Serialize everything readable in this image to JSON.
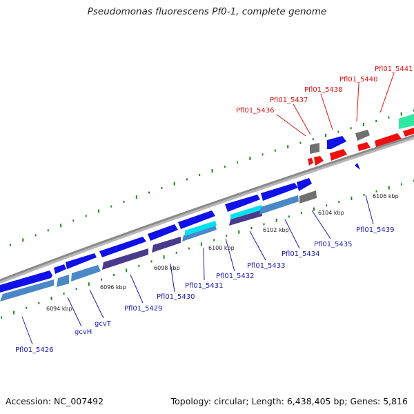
{
  "title": "Pseudomonas fluorescens Pf0-1, complete genome",
  "footer": {
    "accession": "Accession: NC_007492",
    "summary": "Topology: circular; Length: 6,438,405 bp; Genes: 5,816"
  },
  "colors": {
    "forward_gene": "#1010e8",
    "reverse_gene": "#4a88c8",
    "red_gene": "#ee1010",
    "grey_gene": "#707070",
    "purple_gene": "#4a3a8c",
    "cyan_gene": "#00e0f0",
    "teal_gene": "#30e8a0",
    "gc_marks": "#1a8a1a",
    "backbone": "#909090"
  },
  "scale_labels": [
    "6094 kbp",
    "6096 kbp",
    "6098 kbp",
    "6100 kbp",
    "6102 kbp",
    "6104 kbp",
    "6106 kbp"
  ],
  "labels_top": [
    "Pfl01_5436",
    "Pfl01_5437",
    "Pfl01_5438",
    "Pfl01_5440",
    "Pfl01_5441"
  ],
  "labels_bottom": [
    "Pfl01_5426",
    "gcvH",
    "gcvT",
    "Pfl01_5429",
    "Pfl01_5430",
    "Pfl01_5431",
    "Pfl01_5432",
    "Pfl01_5433",
    "Pfl01_5434",
    "Pfl01_5435",
    "Pfl01_5439"
  ]
}
